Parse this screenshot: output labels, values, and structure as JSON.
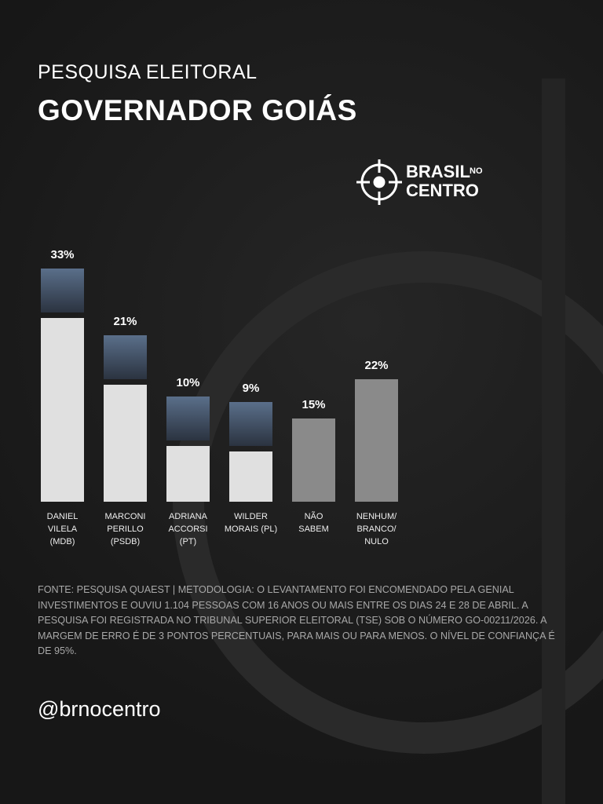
{
  "header": {
    "kicker": "PESQUISA ELEITORAL",
    "title": "GOVERNADOR GOIÁS"
  },
  "logo": {
    "line1": "BRASIL",
    "small": "NO",
    "line2": "CENTRO"
  },
  "chart_data": {
    "type": "bar",
    "categories": [
      "DANIEL\nVILELA\n(MDB)",
      "MARCONI\nPERILLO\n(PSDB)",
      "ADRIANA\nACCORSI\n(PT)",
      "WILDER\nMORAIS (PL)",
      "NÃO\nSABEM",
      "NENHUM/\nBRANCO/\nNULO"
    ],
    "values": [
      33,
      21,
      10,
      9,
      15,
      22
    ],
    "value_labels": [
      "33%",
      "21%",
      "10%",
      "9%",
      "15%",
      "22%"
    ],
    "colors": [
      "#e0e0e0",
      "#e0e0e0",
      "#e0e0e0",
      "#e0e0e0",
      "#8a8a8a",
      "#8a8a8a"
    ]
  },
  "footnote": "FONTE: PESQUISA QUAEST | METODOLOGIA: O LEVANTAMENTO FOI ENCOMENDADO PELA GENIAL INVESTIMENTOS E OUVIU 1.104 PESSOAS COM 16 ANOS OU MAIS ENTRE OS DIAS 24 E 28 DE ABRIL. A PESQUISA FOI REGISTRADA NO TRIBUNAL SUPERIOR ELEITORAL (TSE) SOB O NÚMERO GO-00211/2026. A MARGEM DE ERRO É DE 3 PONTOS PERCENTUAIS, PARA MAIS OU PARA MENOS. O NÍVEL DE CONFIANÇA É DE 95%.",
  "handle": "@brnocentro"
}
